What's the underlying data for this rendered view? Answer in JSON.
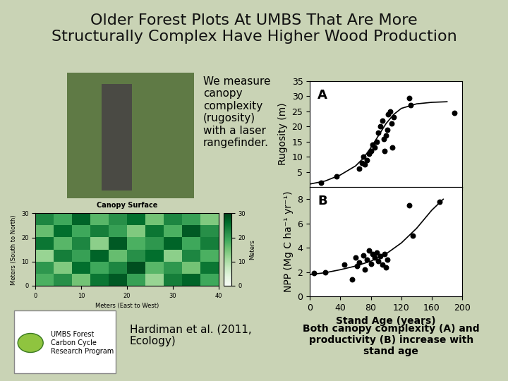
{
  "slide": {
    "title": "Older Forest Plots At UMBS That Are More\nStructurally Complex Have Higher Wood Production",
    "text": "We measure canopy complexity (rugosity) with a laser rangefinder.",
    "citation": "Hardiman et al. (2011, Ecology)",
    "caption": "Both canopy complexity (A) and productivity (B) increase with stand age",
    "logo": "UMBS Forest Carbon Cycle Research Program"
  },
  "chart_data": [
    {
      "type": "heatmap",
      "title": "Canopy Surface",
      "xlabel": "Meters (East to West)",
      "ylabel": "Meters (South to North)",
      "colorbar_label": "Meters",
      "xlim": [
        0,
        40
      ],
      "ylim": [
        0,
        30
      ],
      "xticks": [
        0,
        10,
        20,
        30,
        40
      ],
      "yticks": [
        0,
        10,
        20,
        30
      ],
      "colorbar_lim": [
        0,
        30
      ],
      "colorbar_ticks": [
        0,
        10,
        20,
        30
      ],
      "cells": [
        [
          18,
          22,
          15,
          25,
          28,
          20,
          12,
          24,
          27,
          19
        ],
        [
          21,
          14,
          26,
          19,
          23,
          29,
          17,
          21,
          15,
          25
        ],
        [
          12,
          24,
          20,
          27,
          16,
          22,
          26,
          13,
          23,
          18
        ],
        [
          25,
          17,
          23,
          13,
          28,
          18,
          21,
          27,
          19,
          24
        ],
        [
          16,
          26,
          19,
          24,
          20,
          14,
          25,
          18,
          28,
          22
        ],
        [
          23,
          19,
          27,
          17,
          22,
          26,
          15,
          23,
          20,
          14
        ]
      ]
    },
    {
      "type": "scatter",
      "annotations": [
        "A"
      ],
      "ylabel": "Rugosity (m)",
      "xlim": [
        0,
        200
      ],
      "ylim": [
        0,
        35
      ],
      "xticks": [
        0,
        40,
        80,
        120,
        160,
        200
      ],
      "yticks": [
        5,
        10,
        15,
        20,
        25,
        30,
        35
      ],
      "tick_labels": "y",
      "series": [
        {
          "type": "scatter",
          "color": "#000000",
          "marker": "o",
          "x": [
            15,
            35,
            65,
            68,
            70,
            72,
            75,
            78,
            80,
            82,
            85,
            88,
            90,
            92,
            95,
            97,
            98,
            100,
            102,
            103,
            105,
            107,
            108,
            110,
            130,
            132,
            190
          ],
          "values": [
            1.5,
            3.5,
            6,
            8,
            10,
            7.5,
            9,
            11,
            12,
            14,
            13,
            15,
            18,
            20,
            22,
            16,
            12,
            17,
            19,
            24,
            25,
            21,
            13,
            23,
            29.5,
            27,
            24.5
          ]
        },
        {
          "type": "line",
          "color": "#000000",
          "x": [
            0,
            20,
            40,
            60,
            70,
            80,
            90,
            100,
            110,
            120,
            140,
            160,
            180
          ],
          "values": [
            1,
            2,
            4,
            7,
            9.5,
            13,
            17,
            21,
            24,
            26,
            27.5,
            28,
            28.2
          ]
        }
      ]
    },
    {
      "type": "scatter",
      "annotations": [
        "B"
      ],
      "ylabel": "NPP (Mg C ha⁻¹ yr⁻¹)",
      "xlabel": "Stand Age (years)",
      "xlim": [
        0,
        200
      ],
      "ylim": [
        0,
        9
      ],
      "xticks": [
        0,
        40,
        80,
        120,
        160,
        200
      ],
      "yticks": [
        0,
        2,
        4,
        6,
        8
      ],
      "series": [
        {
          "type": "scatter",
          "color": "#000000",
          "marker": "o",
          "x": [
            5,
            20,
            45,
            55,
            60,
            62,
            65,
            70,
            72,
            75,
            78,
            80,
            82,
            85,
            88,
            90,
            92,
            95,
            98,
            100,
            102,
            130,
            135,
            170
          ],
          "values": [
            1.9,
            2,
            2.6,
            1.4,
            3.2,
            2.5,
            2.8,
            3.4,
            2.2,
            3,
            3.8,
            2.7,
            3.5,
            3.2,
            3.6,
            2.9,
            3.3,
            2.6,
            3.5,
            2.4,
            3,
            7.5,
            5,
            7.8
          ]
        },
        {
          "type": "line",
          "color": "#000000",
          "x": [
            0,
            20,
            40,
            60,
            80,
            100,
            120,
            140,
            160,
            175
          ],
          "values": [
            1.8,
            1.95,
            2.2,
            2.5,
            2.9,
            3.5,
            4.4,
            5.6,
            7.1,
            8.0
          ]
        }
      ]
    }
  ]
}
